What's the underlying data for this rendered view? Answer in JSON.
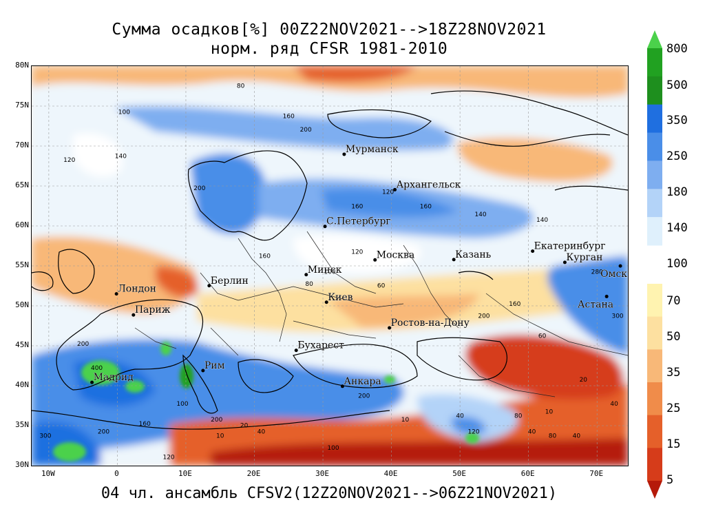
{
  "title_line1": "Сумма осадков[%] 00Z22NOV2021-->18Z28NOV2021",
  "title_line2": "норм. ряд CFSR 1981-2010",
  "footer": "04 чл. ансамбль CFSV2(12Z20NOV2021-->06Z21NOV2021)",
  "lat_labels": [
    "80N",
    "75N",
    "70N",
    "65N",
    "60N",
    "55N",
    "50N",
    "45N",
    "40N",
    "35N",
    "30N"
  ],
  "lon_labels": [
    "10W",
    "0",
    "10E",
    "20E",
    "30E",
    "40E",
    "50E",
    "60E",
    "70E"
  ],
  "colorbar": {
    "labels": [
      "800",
      "500",
      "350",
      "250",
      "180",
      "140",
      "100",
      "70",
      "50",
      "35",
      "25",
      "15",
      "5"
    ],
    "colors": [
      "#4bd14b",
      "#21a121",
      "#1e8f1e",
      "#1f6fe0",
      "#4a8ee8",
      "#7eaef0",
      "#b3d3f8",
      "#dff0fc",
      "#fff3b0",
      "#fde0a0",
      "#f8b878",
      "#f08c4a",
      "#e5602a",
      "#d63c1a",
      "#b51a0a"
    ]
  },
  "cities": [
    {
      "name": "Мурманск",
      "lon": 33.1,
      "lat": 68.97
    },
    {
      "name": "Архангельск",
      "lon": 40.5,
      "lat": 64.54
    },
    {
      "name": "С.Петербург",
      "lon": 30.3,
      "lat": 59.94
    },
    {
      "name": "Москва",
      "lon": 37.6,
      "lat": 55.75
    },
    {
      "name": "Казань",
      "lon": 49.1,
      "lat": 55.79
    },
    {
      "name": "Екатеринбург",
      "lon": 60.6,
      "lat": 56.84
    },
    {
      "name": "Курган",
      "lon": 65.3,
      "lat": 55.44
    },
    {
      "name": "Омск",
      "lon": 73.4,
      "lat": 54.99
    },
    {
      "name": "Астана",
      "lon": 71.4,
      "lat": 51.17
    },
    {
      "name": "Минск",
      "lon": 27.56,
      "lat": 53.9
    },
    {
      "name": "Киев",
      "lon": 30.52,
      "lat": 50.45
    },
    {
      "name": "Берлин",
      "lon": 13.4,
      "lat": 52.52
    },
    {
      "name": "Лондон",
      "lon": -0.13,
      "lat": 51.5
    },
    {
      "name": "Париж",
      "lon": 2.35,
      "lat": 48.86
    },
    {
      "name": "Ростов-на-Дону",
      "lon": 39.7,
      "lat": 47.24
    },
    {
      "name": "Бухарест",
      "lon": 26.1,
      "lat": 44.43
    },
    {
      "name": "Рим",
      "lon": 12.5,
      "lat": 41.9
    },
    {
      "name": "Мадрид",
      "lon": -3.7,
      "lat": 40.42
    },
    {
      "name": "Анкара",
      "lon": 32.85,
      "lat": 39.93
    }
  ],
  "contour_labels": [
    {
      "v": "80",
      "lon": 18.0,
      "lat": 77.3
    },
    {
      "v": "100",
      "lon": 1.0,
      "lat": 74.0
    },
    {
      "v": "160",
      "lon": 25.0,
      "lat": 73.5
    },
    {
      "v": "200",
      "lon": 27.5,
      "lat": 71.8
    },
    {
      "v": "120",
      "lon": -7.0,
      "lat": 68.0
    },
    {
      "v": "140",
      "lon": 0.5,
      "lat": 68.5
    },
    {
      "v": "200",
      "lon": 12.0,
      "lat": 64.5
    },
    {
      "v": "160",
      "lon": 35.0,
      "lat": 62.2
    },
    {
      "v": "160",
      "lon": 45.0,
      "lat": 62.2
    },
    {
      "v": "140",
      "lon": 53.0,
      "lat": 61.2
    },
    {
      "v": "120",
      "lon": 39.5,
      "lat": 64.0
    },
    {
      "v": "100",
      "lon": 31.0,
      "lat": 54.0
    },
    {
      "v": "80",
      "lon": 28.0,
      "lat": 52.5
    },
    {
      "v": "60",
      "lon": 38.5,
      "lat": 52.3
    },
    {
      "v": "160",
      "lon": 21.5,
      "lat": 56.0
    },
    {
      "v": "120",
      "lon": 35.0,
      "lat": 56.5
    },
    {
      "v": "140",
      "lon": 62.0,
      "lat": 60.5
    },
    {
      "v": "160",
      "lon": 58.0,
      "lat": 50.0
    },
    {
      "v": "200",
      "lon": 53.5,
      "lat": 48.5
    },
    {
      "v": "300",
      "lon": 73.0,
      "lat": 48.5
    },
    {
      "v": "280",
      "lon": 70.0,
      "lat": 54.0
    },
    {
      "v": "20",
      "lon": 68.0,
      "lat": 40.5
    },
    {
      "v": "40",
      "lon": 72.5,
      "lat": 37.5
    },
    {
      "v": "200",
      "lon": -5.0,
      "lat": 45.0
    },
    {
      "v": "400",
      "lon": -3.0,
      "lat": 42.0
    },
    {
      "v": "300",
      "lon": -10.5,
      "lat": 33.5
    },
    {
      "v": "200",
      "lon": -2.0,
      "lat": 34.0
    },
    {
      "v": "160",
      "lon": 4.0,
      "lat": 35.0
    },
    {
      "v": "100",
      "lon": 9.5,
      "lat": 37.5
    },
    {
      "v": "200",
      "lon": 14.5,
      "lat": 35.5
    },
    {
      "v": "10",
      "lon": 15.0,
      "lat": 33.5
    },
    {
      "v": "20",
      "lon": 18.5,
      "lat": 34.8
    },
    {
      "v": "40",
      "lon": 21.0,
      "lat": 34.0
    },
    {
      "v": "100",
      "lon": 31.5,
      "lat": 32.0
    },
    {
      "v": "200",
      "lon": 36.0,
      "lat": 38.5
    },
    {
      "v": "10",
      "lon": 42.0,
      "lat": 35.5
    },
    {
      "v": "40",
      "lon": 50.0,
      "lat": 36.0
    },
    {
      "v": "120",
      "lon": 52.0,
      "lat": 34.0
    },
    {
      "v": "80",
      "lon": 58.5,
      "lat": 36.0
    },
    {
      "v": "40",
      "lon": 60.5,
      "lat": 34.0
    },
    {
      "v": "10",
      "lon": 63.0,
      "lat": 36.5
    },
    {
      "v": "80",
      "lon": 63.5,
      "lat": 33.5
    },
    {
      "v": "40",
      "lon": 67.0,
      "lat": 33.5
    },
    {
      "v": "120",
      "lon": 7.5,
      "lat": 30.8
    },
    {
      "v": "60",
      "lon": 62.0,
      "lat": 46.0
    }
  ]
}
